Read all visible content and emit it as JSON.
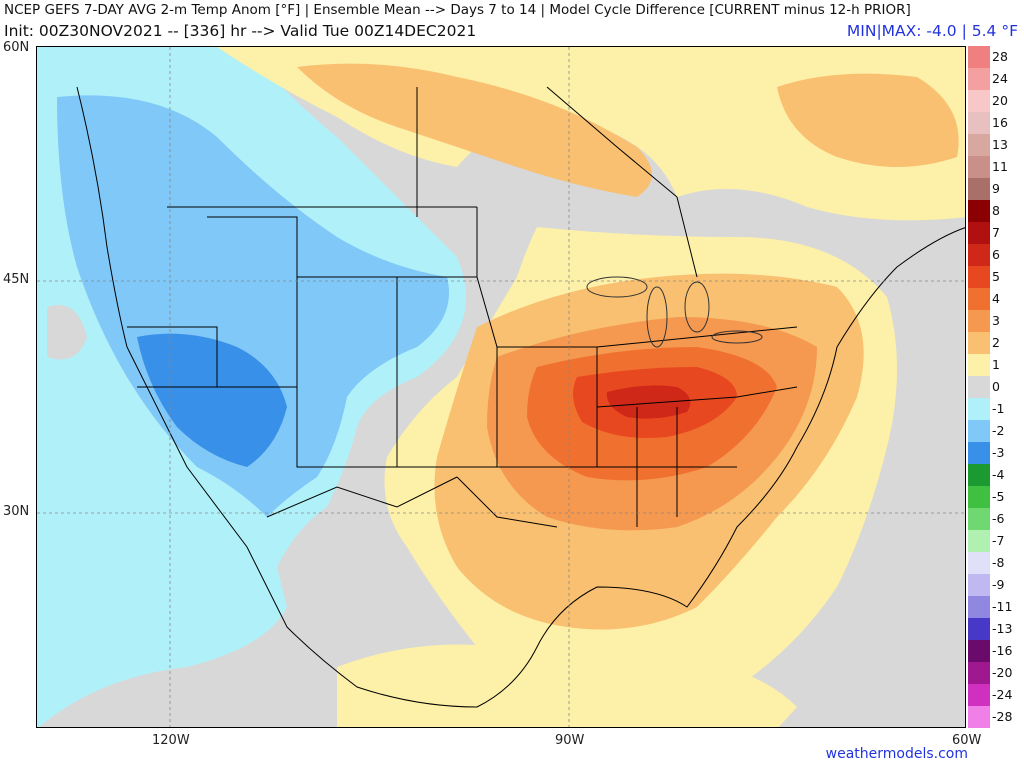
{
  "header": {
    "line1": "NCEP GEFS 7-DAY AVG 2-m Temp Anom [°F] | Ensemble Mean --> Days 7 to 14 | Model Cycle Difference [CURRENT minus 12-h PRIOR]",
    "line2": "Init: 00Z30NOV2021 -- [336] hr --> Valid Tue 00Z14DEC2021",
    "minmax": "MIN|MAX: -4.0 | 5.4 °F"
  },
  "axes": {
    "lat_labels": [
      "60N",
      "45N",
      "30N"
    ],
    "lon_labels": [
      "120W",
      "90W",
      "60W"
    ]
  },
  "credit": "weathermodels.com",
  "legend": [
    {
      "label": "28",
      "color": "#f08080"
    },
    {
      "label": "24",
      "color": "#f4a0a0"
    },
    {
      "label": "20",
      "color": "#f8c8c8"
    },
    {
      "label": "16",
      "color": "#e8c0c0"
    },
    {
      "label": "13",
      "color": "#d8a8a0"
    },
    {
      "label": "11",
      "color": "#c89088"
    },
    {
      "label": "9",
      "color": "#a87068"
    },
    {
      "label": "8",
      "color": "#8b0000"
    },
    {
      "label": "7",
      "color": "#b01010"
    },
    {
      "label": "6",
      "color": "#d02818"
    },
    {
      "label": "5",
      "color": "#e84820"
    },
    {
      "label": "4",
      "color": "#f07030"
    },
    {
      "label": "3",
      "color": "#f59850"
    },
    {
      "label": "2",
      "color": "#f8c070"
    },
    {
      "label": "1",
      "color": "#fdf0a8"
    },
    {
      "label": "0",
      "color": "#d8d8d8"
    },
    {
      "label": "-1",
      "color": "#b0f0f8"
    },
    {
      "label": "-2",
      "color": "#80c8f8"
    },
    {
      "label": "-3",
      "color": "#3890e8"
    },
    {
      "label": "-4",
      "color": "#1a9a30"
    },
    {
      "label": "-5",
      "color": "#40c040"
    },
    {
      "label": "-6",
      "color": "#70d870"
    },
    {
      "label": "-7",
      "color": "#b0f0b0"
    },
    {
      "label": "-8",
      "color": "#e0e0f8"
    },
    {
      "label": "-9",
      "color": "#c0b8f0"
    },
    {
      "label": "-11",
      "color": "#9088e0"
    },
    {
      "label": "-13",
      "color": "#4838c8"
    },
    {
      "label": "-16",
      "color": "#6a0a6a"
    },
    {
      "label": "-20",
      "color": "#a01890"
    },
    {
      "label": "-24",
      "color": "#d030c0"
    },
    {
      "label": "-28",
      "color": "#f080e8"
    }
  ]
}
